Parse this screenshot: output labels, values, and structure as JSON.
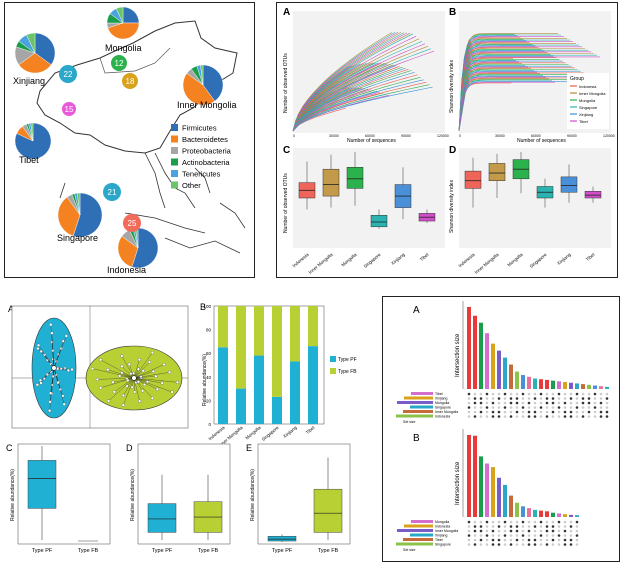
{
  "map": {
    "regions": [
      {
        "name": "Mongolia",
        "sample_count": "12",
        "color": "#2bb24c"
      },
      {
        "name": "Xinjiang",
        "sample_count": "22",
        "color": "#2aa7c9"
      },
      {
        "name": "Inner Mongolia",
        "sample_count": "18",
        "color": "#d9a21b"
      },
      {
        "name": "Tibet",
        "sample_count": "15",
        "color": "#e85ad9"
      },
      {
        "name": "Singapore",
        "sample_count": "21",
        "color": "#2aa7c9"
      },
      {
        "name": "Indonesia",
        "sample_count": "25",
        "color": "#f26b5b"
      }
    ],
    "legend": [
      {
        "label": "Firmicutes",
        "color": "#2f6fb6"
      },
      {
        "label": "Bacteroidetes",
        "color": "#f58220"
      },
      {
        "label": "Proteobacteria",
        "color": "#a6a6a6"
      },
      {
        "label": "Actinobacteria",
        "color": "#1a9e4b"
      },
      {
        "label": "Tenericutes",
        "color": "#4aa3df"
      },
      {
        "label": "Other",
        "color": "#6ac46a"
      }
    ]
  },
  "rarefaction": {
    "panel_a": {
      "letter": "A",
      "ylabel": "Number of observed OTUs",
      "xlabel": "Number of sequences"
    },
    "panel_b": {
      "letter": "B",
      "ylabel": "Shannon diversity index",
      "xlabel": "Number of sequences",
      "legend_title": "Group",
      "legend": [
        "Indonesia",
        "Inner Mongolia",
        "Mongolia",
        "Singapore",
        "Xinjiang",
        "Tibet"
      ]
    },
    "x_ticks": [
      "0",
      "30000",
      "60000",
      "90000",
      "120000"
    ],
    "colors": [
      "#e75a4e",
      "#b58a3a",
      "#2bb24c",
      "#2ab3b0",
      "#3b8fd9",
      "#d04fc9"
    ]
  },
  "boxplots_cd": {
    "panel_c": {
      "letter": "C",
      "ylabel": "Number of observed OTUs"
    },
    "panel_d": {
      "letter": "D",
      "ylabel": "Shannon diversity index"
    },
    "groups": [
      "Indonesia",
      "Inner Mongolia",
      "Mongolia",
      "Singapore",
      "Xinjiang",
      "Tibet"
    ],
    "colors": [
      "#f0655a",
      "#c39a4a",
      "#2bb24c",
      "#2ab3b0",
      "#4a90d9",
      "#d04fc9"
    ]
  },
  "enterotype": {
    "pcoa": {
      "letter": "A"
    },
    "bar": {
      "letter": "B",
      "ylabel": "Relative abundance(%)",
      "y_ticks": [
        "0",
        "20",
        "40",
        "60",
        "80",
        "100"
      ],
      "groups": [
        "Indonesia",
        "Inner Mongolia",
        "Mongolia",
        "Singapore",
        "Xinjiang",
        "Tibet"
      ],
      "legend": [
        {
          "label": "Type PF",
          "color": "#1fb0d4"
        },
        {
          "label": "Type FB",
          "color": "#b8d034"
        }
      ]
    },
    "box_c": {
      "letter": "C",
      "ylabel": "Relative abundance(%)",
      "xlabels": [
        "Type PF",
        "Type FB"
      ]
    },
    "box_d": {
      "letter": "D",
      "ylabel": "Relative abundance(%)",
      "xlabels": [
        "Type PF",
        "Type FB"
      ]
    },
    "box_e": {
      "letter": "E",
      "ylabel": "Relative abundance(%)",
      "xlabels": [
        "Type PF",
        "Type FB"
      ]
    }
  },
  "upset": {
    "panel_a": {
      "letter": "A",
      "ylabel": "Intersection size",
      "set_label": "Set size",
      "sets": [
        "Tibet",
        "Xinjiang",
        "Mongolia",
        "Singapore",
        "Inner Mongolia",
        "Indonesia"
      ]
    },
    "panel_b": {
      "letter": "B",
      "ylabel": "Intersection size",
      "set_label": "Set size",
      "sets": [
        "Mongolia",
        "Indonesia",
        "Inner Mongolia",
        "Xinjiang",
        "Tibet",
        "Singapore"
      ]
    }
  },
  "chart_data": [
    {
      "type": "bar",
      "title": "",
      "ylabel": "Relative abundance(%)",
      "ylim": [
        0,
        100
      ],
      "categories": [
        "Indonesia",
        "Inner Mongolia",
        "Mongolia",
        "Singapore",
        "Xinjiang",
        "Tibet"
      ],
      "series": [
        {
          "name": "Type PF",
          "values": [
            65,
            30,
            58,
            23,
            53,
            66
          ]
        },
        {
          "name": "Type FB",
          "values": [
            35,
            70,
            42,
            77,
            47,
            34
          ]
        }
      ]
    },
    {
      "type": "bar",
      "ylabel": "Intersection size",
      "values": [
        235,
        210,
        190,
        160,
        130,
        110,
        90,
        70,
        50,
        40,
        35,
        30,
        28,
        26,
        24,
        22,
        20,
        18,
        16,
        14,
        12,
        10,
        8,
        6
      ]
    },
    {
      "type": "bar",
      "ylabel": "Intersection size",
      "values": [
        230,
        228,
        170,
        150,
        140,
        110,
        90,
        60,
        40,
        30,
        25,
        20,
        18,
        16,
        12,
        10,
        8,
        6,
        5
      ]
    }
  ]
}
